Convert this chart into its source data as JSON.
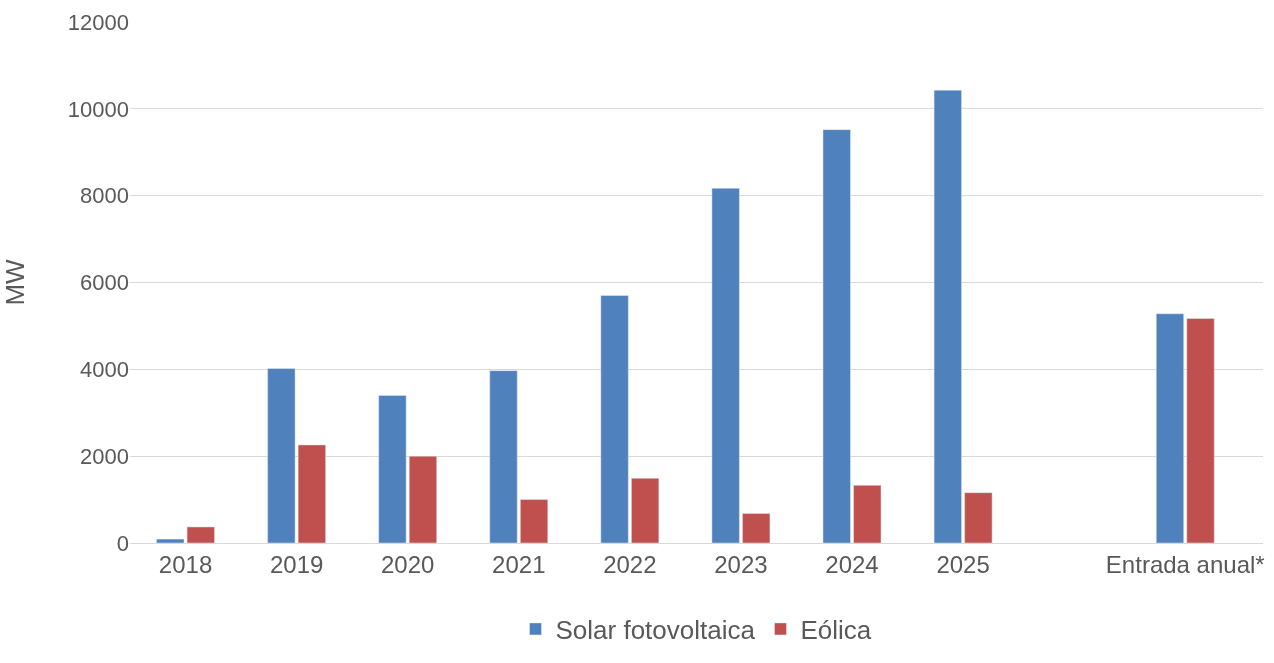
{
  "chart_data": {
    "type": "bar",
    "ylabel": "MW",
    "categories": [
      "2018",
      "2019",
      "2020",
      "2021",
      "2022",
      "2023",
      "2024",
      "2025",
      null,
      "Entrada anual*"
    ],
    "series": [
      {
        "name": "Solar fotovoltaica",
        "color": "#4f81bd",
        "values": [
          90,
          4020,
          3400,
          3970,
          5700,
          8170,
          9520,
          10430,
          null,
          5280
        ]
      },
      {
        "name": "Eólica",
        "color": "#c0504d",
        "values": [
          370,
          2260,
          2000,
          1000,
          1490,
          680,
          1330,
          1160,
          null,
          5170
        ]
      }
    ],
    "ylim": [
      0,
      12000
    ],
    "yticks": [
      0,
      2000,
      4000,
      6000,
      8000,
      10000,
      12000
    ],
    "grid": "y",
    "legend": "bottom"
  }
}
